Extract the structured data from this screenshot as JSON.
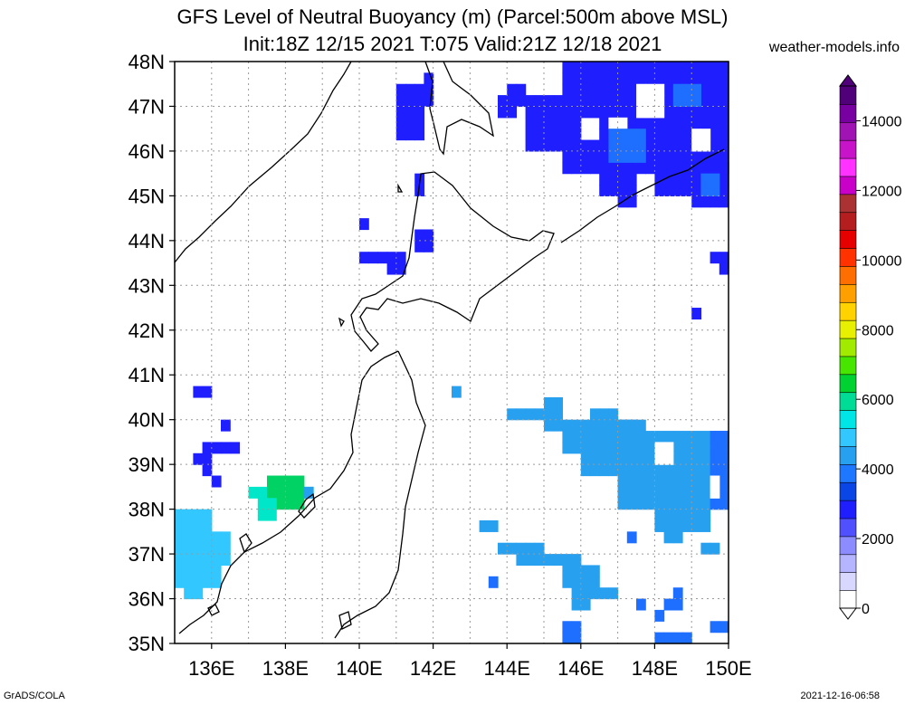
{
  "title_line1": "GFS Level of Neutral Buoyancy (m) (Parcel:500m above MSL)",
  "title_line2": "Init:18Z 12/15 2021 T:075 Valid:21Z 12/18 2021",
  "credit": "weather-models.info",
  "footer_left": "GrADS/COLA",
  "footer_right": "2021-12-16-06:58",
  "map": {
    "lon_labels": [
      "136E",
      "138E",
      "140E",
      "142E",
      "144E",
      "146E",
      "148E",
      "150E"
    ],
    "lat_labels": [
      "35N",
      "36N",
      "37N",
      "38N",
      "39N",
      "40N",
      "41N",
      "42N",
      "43N",
      "44N",
      "45N",
      "46N",
      "47N",
      "48N"
    ],
    "lon_range": [
      135,
      150
    ],
    "lat_range": [
      35,
      48
    ]
  },
  "colorbar": {
    "labels": [
      "0",
      "2000",
      "4000",
      "6000",
      "8000",
      "10000",
      "12000",
      "14000"
    ],
    "colors": [
      "#ffffff",
      "#d8d8ff",
      "#b4b4ff",
      "#8c8cff",
      "#5050ff",
      "#1e1eff",
      "#0a46e6",
      "#1e78ff",
      "#28a0f0",
      "#32c8ff",
      "#00e6e6",
      "#00dc96",
      "#00d232",
      "#46e600",
      "#a0eb00",
      "#e6f000",
      "#ffd200",
      "#ffa000",
      "#ff6e00",
      "#ff3200",
      "#e60000",
      "#b41e1e",
      "#aa3232",
      "#c800c8",
      "#ff32ff",
      "#c814c8",
      "#a014b4",
      "#7800a0",
      "#500078"
    ]
  }
}
